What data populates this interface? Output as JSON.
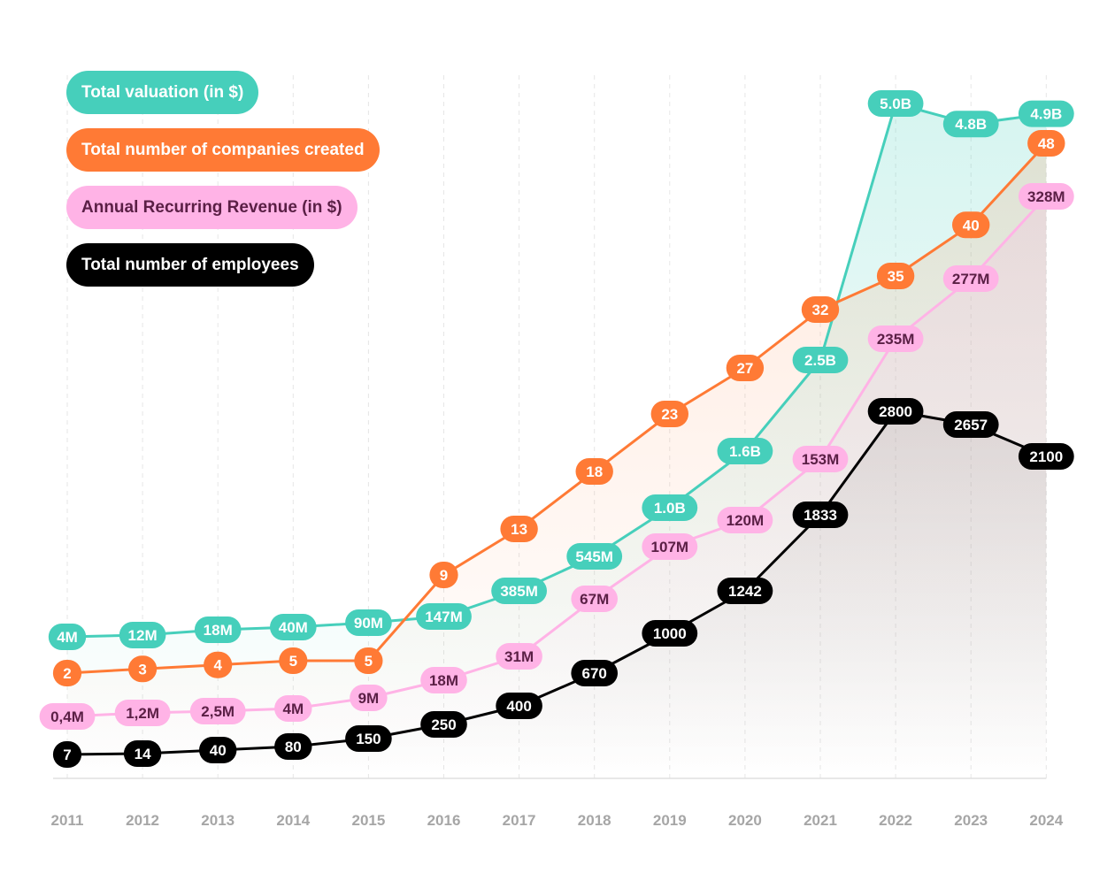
{
  "chart_data": {
    "type": "line",
    "title": "",
    "xlabel": "",
    "ylabel": "",
    "x": [
      "2011",
      "2012",
      "2013",
      "2014",
      "2015",
      "2016",
      "2017",
      "2018",
      "2019",
      "2020",
      "2021",
      "2022",
      "2023",
      "2024"
    ],
    "grid": "vertical-dashed",
    "legend_position": "top-left",
    "series": [
      {
        "key": "valuation",
        "name": "Total valuation (in $)",
        "color": "#46cfbb",
        "text_color": "#ffffff",
        "values": [
          4000000,
          12000000,
          18000000,
          40000000,
          90000000,
          147000000,
          385000000,
          545000000,
          1000000000,
          1600000000,
          2500000000,
          5000000000,
          4800000000,
          4900000000
        ],
        "labels": [
          "4M",
          "12M",
          "18M",
          "40M",
          "90M",
          "147M",
          "385M",
          "545M",
          "1.0B",
          "1.6B",
          "2.5B",
          "5.0B",
          "4.8B",
          "4.9B"
        ]
      },
      {
        "key": "companies",
        "name": "Total number of companies created",
        "color": "#ff7a35",
        "text_color": "#ffffff",
        "values": [
          2,
          3,
          4,
          5,
          5,
          9,
          13,
          18,
          23,
          27,
          32,
          35,
          40,
          48
        ],
        "labels": [
          "2",
          "3",
          "4",
          "5",
          "5",
          "9",
          "13",
          "18",
          "23",
          "27",
          "32",
          "35",
          "40",
          "48"
        ]
      },
      {
        "key": "arr",
        "name": "Annual Recurring Revenue (in $)",
        "color": "#ffb3e6",
        "text_color": "#5a1f45",
        "values": [
          400000,
          1200000,
          2500000,
          4000000,
          9000000,
          18000000,
          31000000,
          67000000,
          107000000,
          120000000,
          153000000,
          235000000,
          277000000,
          328000000
        ],
        "labels": [
          "0,4M",
          "1,2M",
          "2,5M",
          "4M",
          "9M",
          "18M",
          "31M",
          "67M",
          "107M",
          "120M",
          "153M",
          "235M",
          "277M",
          "328M"
        ]
      },
      {
        "key": "employees",
        "name": "Total number of employees",
        "color": "#000000",
        "text_color": "#ffffff",
        "values": [
          7,
          14,
          40,
          80,
          150,
          250,
          400,
          670,
          1000,
          1242,
          1833,
          2800,
          2657,
          2100
        ],
        "labels": [
          "7",
          "14",
          "40",
          "80",
          "150",
          "250",
          "400",
          "670",
          "1000",
          "1242",
          "1833",
          "2800",
          "2657",
          "2100"
        ]
      }
    ]
  }
}
